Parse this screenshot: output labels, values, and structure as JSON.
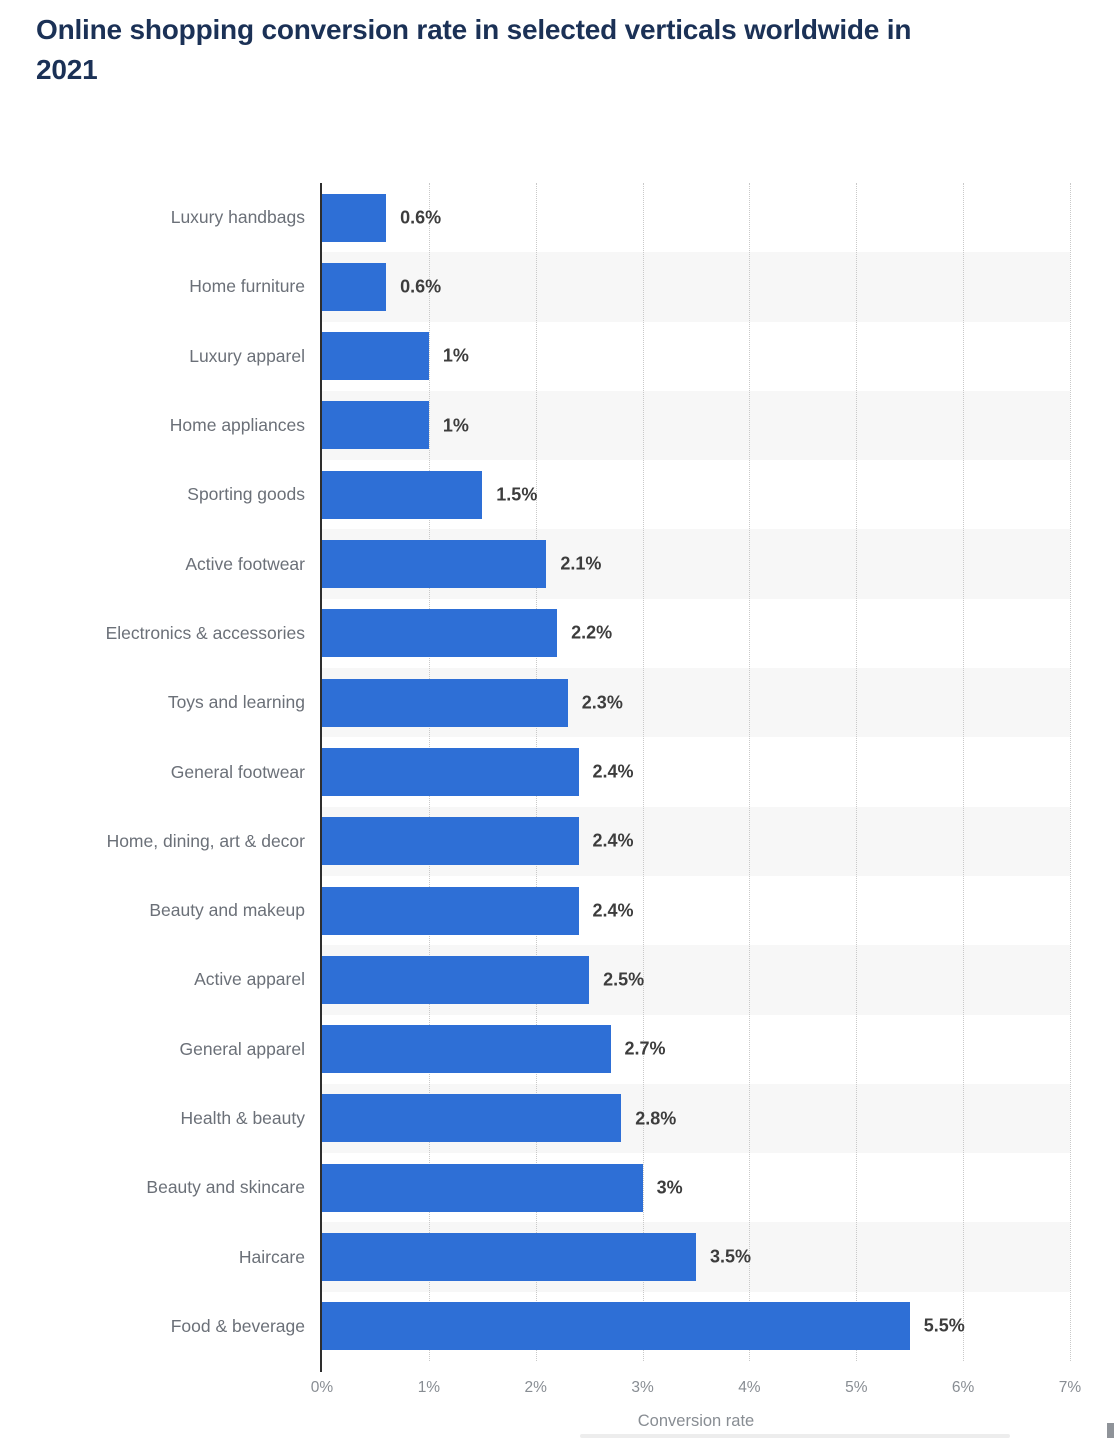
{
  "title": "Online shopping conversion rate in selected verticals worldwide in 2021",
  "chart_data": {
    "type": "bar",
    "orientation": "horizontal",
    "categories": [
      "Luxury handbags",
      "Home furniture",
      "Luxury apparel",
      "Home appliances",
      "Sporting goods",
      "Active footwear",
      "Electronics & accessories",
      "Toys and learning",
      "General footwear",
      "Home, dining, art & decor",
      "Beauty and makeup",
      "Active apparel",
      "General apparel",
      "Health & beauty",
      "Beauty and skincare",
      "Haircare",
      "Food & beverage"
    ],
    "values": [
      0.6,
      0.6,
      1,
      1,
      1.5,
      2.1,
      2.2,
      2.3,
      2.4,
      2.4,
      2.4,
      2.5,
      2.7,
      2.8,
      3,
      3.5,
      5.5
    ],
    "value_labels": [
      "0.6%",
      "0.6%",
      "1%",
      "1%",
      "1.5%",
      "2.1%",
      "2.2%",
      "2.3%",
      "2.4%",
      "2.4%",
      "2.4%",
      "2.5%",
      "2.7%",
      "2.8%",
      "3%",
      "3.5%",
      "5.5%"
    ],
    "xlabel": "Conversion rate",
    "x_ticks": [
      "0%",
      "1%",
      "2%",
      "3%",
      "4%",
      "5%",
      "6%",
      "7%"
    ],
    "xlim": [
      0,
      7
    ],
    "grid": "dotted-vertical",
    "legend": "none",
    "bar_color": "#2e6fd6",
    "stripe_color": "#f7f7f7",
    "title_color": "#1b3156"
  }
}
